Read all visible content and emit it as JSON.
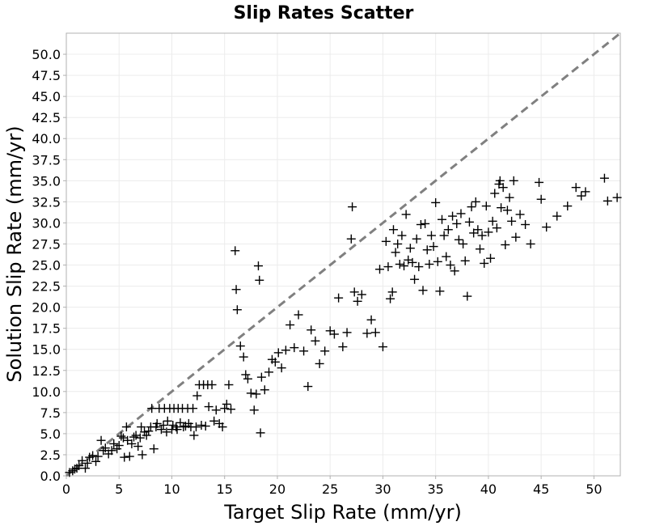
{
  "chart_data": {
    "type": "scatter",
    "title": "Slip Rates Scatter",
    "xlabel": "Target Slip Rate (mm/yr)",
    "ylabel": "Solution Slip Rate (mm/yr)",
    "xlim": [
      0,
      52.5
    ],
    "ylim": [
      0,
      52.5
    ],
    "xticks": [
      "0",
      "5",
      "10",
      "15",
      "20",
      "25",
      "30",
      "35",
      "40",
      "45",
      "50"
    ],
    "yticks": [
      "0.0",
      "2.5",
      "5.0",
      "7.5",
      "10.0",
      "12.5",
      "15.0",
      "17.5",
      "20.0",
      "22.5",
      "25.0",
      "27.5",
      "30.0",
      "32.5",
      "35.0",
      "37.5",
      "40.0",
      "42.5",
      "45.0",
      "47.5",
      "50.0"
    ],
    "grid": true,
    "marker": "plus",
    "marker_color": "#000000",
    "reference_line": {
      "type": "y=x",
      "style": "dashed",
      "color": "#808080"
    },
    "points": [
      [
        0.3,
        0.4
      ],
      [
        0.6,
        0.6
      ],
      [
        0.8,
        0.8
      ],
      [
        1.0,
        0.9
      ],
      [
        1.2,
        1.2
      ],
      [
        1.5,
        1.8
      ],
      [
        1.8,
        0.9
      ],
      [
        2.0,
        1.5
      ],
      [
        2.2,
        2.2
      ],
      [
        2.5,
        2.4
      ],
      [
        2.8,
        1.7
      ],
      [
        3.0,
        2.3
      ],
      [
        3.3,
        4.2
      ],
      [
        3.5,
        3.0
      ],
      [
        3.7,
        3.3
      ],
      [
        4.0,
        2.6
      ],
      [
        4.3,
        3.0
      ],
      [
        4.5,
        3.8
      ],
      [
        4.8,
        3.2
      ],
      [
        5.0,
        3.6
      ],
      [
        5.2,
        4.7
      ],
      [
        5.4,
        4.5
      ],
      [
        5.5,
        2.2
      ],
      [
        5.7,
        5.8
      ],
      [
        5.8,
        4.2
      ],
      [
        6.0,
        2.3
      ],
      [
        6.2,
        3.8
      ],
      [
        6.4,
        4.6
      ],
      [
        6.6,
        4.8
      ],
      [
        6.8,
        3.5
      ],
      [
        7.0,
        4.5
      ],
      [
        7.1,
        5.8
      ],
      [
        7.2,
        2.5
      ],
      [
        7.4,
        5.2
      ],
      [
        7.6,
        4.8
      ],
      [
        7.8,
        5.3
      ],
      [
        8.0,
        5.8
      ],
      [
        8.1,
        8.0
      ],
      [
        8.3,
        3.2
      ],
      [
        8.5,
        5.8
      ],
      [
        8.6,
        6.2
      ],
      [
        8.8,
        8.0
      ],
      [
        9.0,
        5.5
      ],
      [
        9.2,
        6.0
      ],
      [
        9.3,
        8.0
      ],
      [
        9.5,
        5.2
      ],
      [
        9.6,
        6.5
      ],
      [
        9.8,
        8.0
      ],
      [
        10.0,
        5.5
      ],
      [
        10.1,
        6.0
      ],
      [
        10.2,
        8.0
      ],
      [
        10.4,
        5.8
      ],
      [
        10.5,
        5.5
      ],
      [
        10.6,
        8.0
      ],
      [
        10.8,
        6.3
      ],
      [
        11.0,
        8.0
      ],
      [
        11.1,
        5.8
      ],
      [
        11.3,
        5.9
      ],
      [
        11.5,
        8.0
      ],
      [
        11.6,
        6.2
      ],
      [
        11.8,
        5.8
      ],
      [
        12.0,
        8.0
      ],
      [
        12.1,
        4.8
      ],
      [
        12.3,
        5.8
      ],
      [
        12.4,
        9.5
      ],
      [
        12.6,
        10.8
      ],
      [
        12.8,
        6.0
      ],
      [
        13.0,
        10.8
      ],
      [
        13.2,
        5.9
      ],
      [
        13.4,
        10.8
      ],
      [
        13.5,
        8.2
      ],
      [
        13.8,
        10.8
      ],
      [
        14.0,
        6.5
      ],
      [
        14.2,
        7.8
      ],
      [
        14.5,
        6.2
      ],
      [
        14.8,
        5.8
      ],
      [
        15.0,
        8.0
      ],
      [
        15.2,
        8.5
      ],
      [
        15.4,
        10.8
      ],
      [
        15.6,
        7.9
      ],
      [
        16.0,
        26.7
      ],
      [
        16.1,
        22.1
      ],
      [
        16.2,
        19.7
      ],
      [
        16.5,
        15.4
      ],
      [
        16.8,
        14.1
      ],
      [
        17.0,
        12.0
      ],
      [
        17.2,
        11.5
      ],
      [
        17.5,
        9.8
      ],
      [
        17.8,
        7.8
      ],
      [
        18.0,
        9.7
      ],
      [
        18.2,
        24.9
      ],
      [
        18.3,
        23.2
      ],
      [
        18.4,
        5.1
      ],
      [
        18.5,
        11.7
      ],
      [
        18.8,
        10.2
      ],
      [
        19.2,
        12.3
      ],
      [
        19.5,
        13.8
      ],
      [
        19.8,
        13.5
      ],
      [
        20.1,
        14.6
      ],
      [
        20.4,
        12.8
      ],
      [
        20.8,
        14.9
      ],
      [
        21.2,
        17.9
      ],
      [
        21.6,
        15.2
      ],
      [
        22.0,
        19.1
      ],
      [
        22.5,
        14.8
      ],
      [
        22.9,
        10.6
      ],
      [
        23.2,
        17.3
      ],
      [
        23.6,
        16.0
      ],
      [
        24.0,
        13.3
      ],
      [
        24.5,
        14.8
      ],
      [
        25.0,
        17.2
      ],
      [
        25.4,
        16.8
      ],
      [
        25.8,
        21.1
      ],
      [
        26.2,
        15.3
      ],
      [
        26.6,
        17.0
      ],
      [
        27.0,
        28.1
      ],
      [
        27.1,
        31.9
      ],
      [
        27.3,
        21.8
      ],
      [
        27.6,
        20.7
      ],
      [
        28.0,
        21.5
      ],
      [
        28.5,
        16.9
      ],
      [
        28.9,
        18.5
      ],
      [
        29.3,
        17.0
      ],
      [
        29.7,
        24.5
      ],
      [
        30.0,
        15.3
      ],
      [
        30.3,
        27.8
      ],
      [
        30.5,
        24.8
      ],
      [
        30.7,
        21.0
      ],
      [
        30.9,
        21.8
      ],
      [
        31.0,
        29.2
      ],
      [
        31.2,
        26.5
      ],
      [
        31.4,
        27.5
      ],
      [
        31.6,
        25.1
      ],
      [
        31.8,
        28.5
      ],
      [
        32.0,
        24.9
      ],
      [
        32.2,
        31.0
      ],
      [
        32.4,
        25.6
      ],
      [
        32.6,
        27.0
      ],
      [
        32.8,
        25.3
      ],
      [
        33.0,
        23.3
      ],
      [
        33.2,
        28.1
      ],
      [
        33.4,
        24.8
      ],
      [
        33.6,
        29.8
      ],
      [
        33.8,
        22.0
      ],
      [
        34.0,
        29.9
      ],
      [
        34.2,
        26.8
      ],
      [
        34.4,
        25.1
      ],
      [
        34.6,
        28.5
      ],
      [
        34.8,
        27.2
      ],
      [
        35.0,
        32.4
      ],
      [
        35.2,
        25.4
      ],
      [
        35.4,
        21.9
      ],
      [
        35.6,
        30.4
      ],
      [
        35.8,
        28.5
      ],
      [
        36.0,
        26.0
      ],
      [
        36.2,
        29.2
      ],
      [
        36.4,
        25.0
      ],
      [
        36.6,
        30.8
      ],
      [
        36.8,
        24.3
      ],
      [
        37.0,
        29.9
      ],
      [
        37.2,
        28.0
      ],
      [
        37.4,
        31.1
      ],
      [
        37.6,
        27.5
      ],
      [
        37.8,
        25.5
      ],
      [
        38.0,
        21.3
      ],
      [
        38.2,
        30.1
      ],
      [
        38.4,
        31.9
      ],
      [
        38.6,
        28.8
      ],
      [
        38.8,
        32.5
      ],
      [
        39.0,
        29.2
      ],
      [
        39.2,
        26.9
      ],
      [
        39.4,
        28.5
      ],
      [
        39.6,
        25.2
      ],
      [
        39.8,
        32.0
      ],
      [
        40.0,
        28.9
      ],
      [
        40.2,
        25.8
      ],
      [
        40.4,
        30.2
      ],
      [
        40.6,
        33.5
      ],
      [
        40.8,
        29.4
      ],
      [
        41.0,
        34.6
      ],
      [
        41.1,
        35.0
      ],
      [
        41.2,
        31.8
      ],
      [
        41.4,
        34.2
      ],
      [
        41.6,
        27.4
      ],
      [
        41.8,
        31.5
      ],
      [
        42.0,
        33.0
      ],
      [
        42.2,
        30.2
      ],
      [
        42.4,
        35.0
      ],
      [
        42.6,
        28.3
      ],
      [
        43.0,
        31.0
      ],
      [
        43.5,
        29.8
      ],
      [
        44.0,
        27.5
      ],
      [
        44.8,
        34.8
      ],
      [
        45.0,
        32.8
      ],
      [
        45.5,
        29.5
      ],
      [
        46.5,
        30.8
      ],
      [
        47.5,
        32.0
      ],
      [
        48.3,
        34.2
      ],
      [
        48.8,
        33.2
      ],
      [
        49.2,
        33.7
      ],
      [
        51.0,
        35.3
      ],
      [
        51.3,
        32.6
      ],
      [
        52.2,
        33.0
      ]
    ]
  }
}
